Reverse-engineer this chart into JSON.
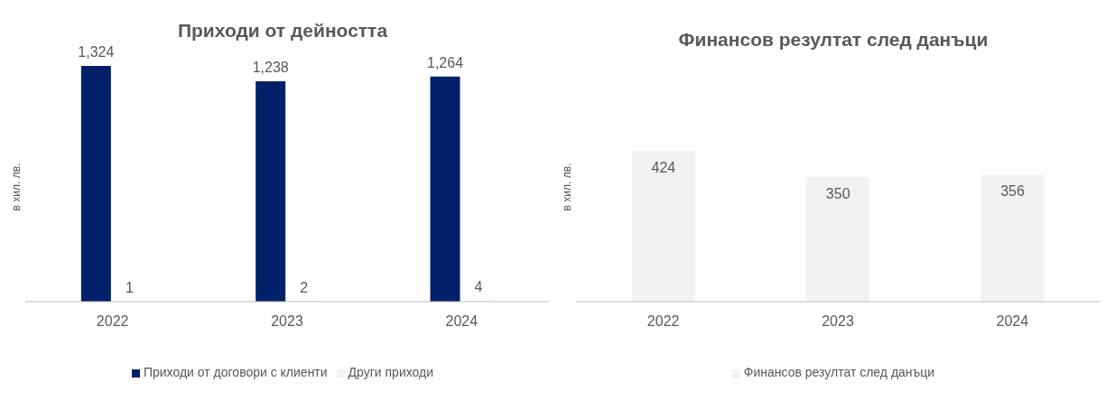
{
  "chart_data": [
    {
      "type": "bar",
      "title": "Приходи от дейността",
      "ylabel": "в хил. лв.",
      "categories": [
        "2022",
        "2023",
        "2024"
      ],
      "series": [
        {
          "name": "Приходи от договори с клиенти",
          "color": "#002169",
          "values": [
            1324,
            1238,
            1264
          ],
          "value_labels": [
            "1,324",
            "1,238",
            "1,264"
          ]
        },
        {
          "name": "Други приходи",
          "color": "#f2f2f2",
          "values": [
            1,
            2,
            4
          ],
          "value_labels": [
            "1",
            "2",
            "4"
          ]
        }
      ],
      "legend": "bottom",
      "grid": false
    },
    {
      "type": "bar",
      "title": "Финансов резултат след данъци",
      "ylabel": "в хил. лв.",
      "categories": [
        "2022",
        "2023",
        "2024"
      ],
      "series": [
        {
          "name": "Финансов резултат след данъци",
          "color": "#f2f2f2",
          "values": [
            424,
            350,
            356
          ]
        }
      ],
      "data_labels": true,
      "legend": "bottom",
      "grid": false
    }
  ]
}
